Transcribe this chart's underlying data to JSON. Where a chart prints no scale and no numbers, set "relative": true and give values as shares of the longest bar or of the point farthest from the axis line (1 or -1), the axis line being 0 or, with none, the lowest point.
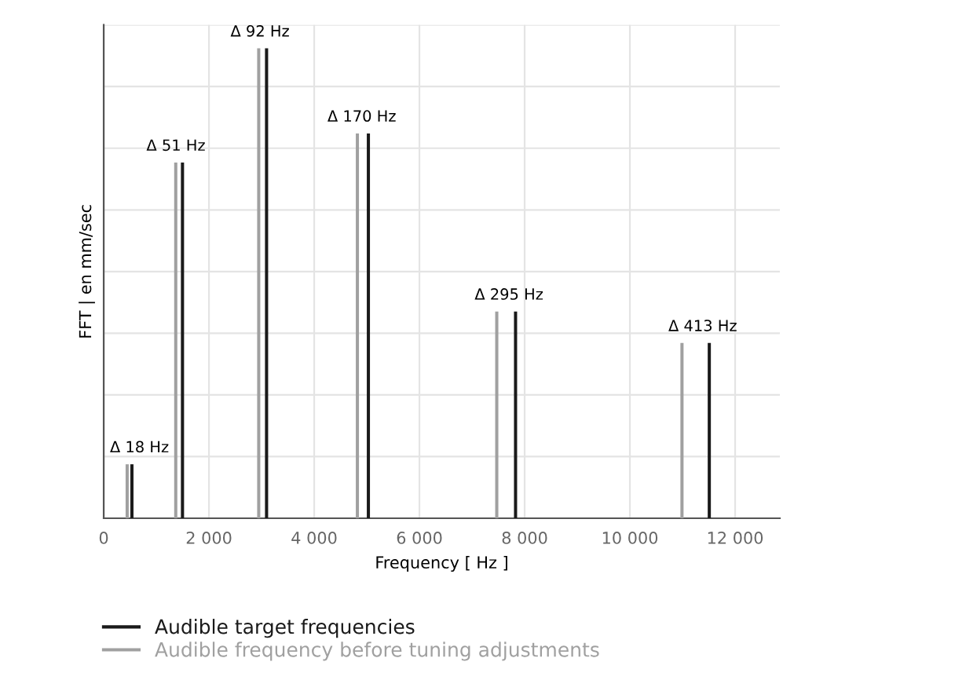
{
  "chart_data": {
    "type": "bar",
    "relative": true,
    "xlabel": "Frequency [ Hz ]",
    "ylabel": "FFT | en mm/sec",
    "xlim": [
      0,
      12850
    ],
    "xticks": [
      0,
      {
        "value": 2000,
        "label": "2 000"
      },
      {
        "value": 4000,
        "label": "4 000"
      },
      {
        "value": 6000,
        "label": "6 000"
      },
      {
        "value": 8000,
        "label": "8 000"
      },
      {
        "value": 10000,
        "label": "10 000"
      },
      {
        "value": 12000,
        "label": "12 000"
      }
    ],
    "tick_labels": "x",
    "grid": true,
    "legend": "bottom",
    "series": [
      {
        "name": "Audible target frequencies",
        "color": "#1a1a1a",
        "x": [
          536,
          1497,
          3095,
          5030,
          7827,
          11509
        ],
        "values": [
          0.115,
          0.757,
          1,
          0.819,
          0.44,
          0.373
        ]
      },
      {
        "name": "Audible frequency before tuning adjustments",
        "color": "#a0a0a0",
        "x": [
          446,
          1369,
          2946,
          4821,
          7470,
          10990
        ],
        "values": [
          0.115,
          0.757,
          1,
          0.819,
          0.44,
          0.373
        ]
      }
    ],
    "annotations": [
      {
        "text": "Δ 18 Hz",
        "x": 536,
        "y": 0.115
      },
      {
        "text": "Δ 51 Hz",
        "x": 1497,
        "y": 0.757
      },
      {
        "text": "Δ 92 Hz",
        "x": 3095,
        "y": 1
      },
      {
        "text": "Δ 170 Hz",
        "x": 5030,
        "y": 0.819
      },
      {
        "text": "Δ 295 Hz",
        "x": 7827,
        "y": 0.44
      },
      {
        "text": "Δ 413 Hz",
        "x": 11509,
        "y": 0.373
      }
    ]
  }
}
